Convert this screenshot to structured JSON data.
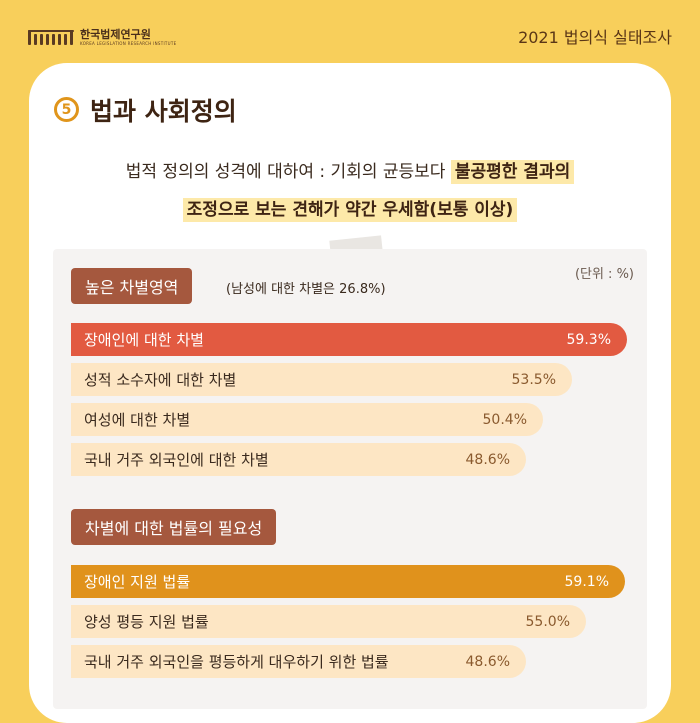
{
  "header": {
    "org_name": "한국법제연구원",
    "org_sub": "KOREA LEGISLATION RESEARCH INSTITUTE",
    "survey_title": "2021 법의식 실태조사"
  },
  "section": {
    "number": "5",
    "title": "법과 사회정의"
  },
  "summary": {
    "line1_plain": "법적 정의의 성격에 대하여 : 기회의 균등보다 ",
    "line1_highlight": "불공평한 결과의",
    "line2_highlight": "조정으로 보는 견해가 약간 우세함(보통 이상)"
  },
  "colors": {
    "background": "#f8cf5b",
    "highlight_bar_1": "#e25a41",
    "highlight_bar_2": "#e0921c",
    "pale_bar": "#fde6c4",
    "group_label": "#a5583e"
  },
  "chart_data": {
    "type": "bar",
    "orientation": "horizontal",
    "unit": "(단위 : %)",
    "groups": [
      {
        "label": "높은 차별영역",
        "note": "(남성에 대한 차별은 26.8%)",
        "categories": [
          "장애인에 대한 차별",
          "성적 소수자에 대한 차별",
          "여성에 대한 차별",
          "국내 거주 외국인에 대한 차별"
        ],
        "values": [
          59.3,
          53.5,
          50.4,
          48.6
        ],
        "value_labels": [
          "59.3%",
          "53.5%",
          "50.4%",
          "48.6%"
        ],
        "highlight_index": 0
      },
      {
        "label": "차별에 대한 법률의 필요성",
        "categories": [
          "장애인 지원 법률",
          "양성 평등 지원 법률",
          "국내 거주 외국인을 평등하게 대우하기 위한 법률"
        ],
        "values": [
          59.1,
          55.0,
          48.6
        ],
        "value_labels": [
          "59.1%",
          "55.0%",
          "48.6%"
        ],
        "highlight_index": 0
      }
    ]
  }
}
